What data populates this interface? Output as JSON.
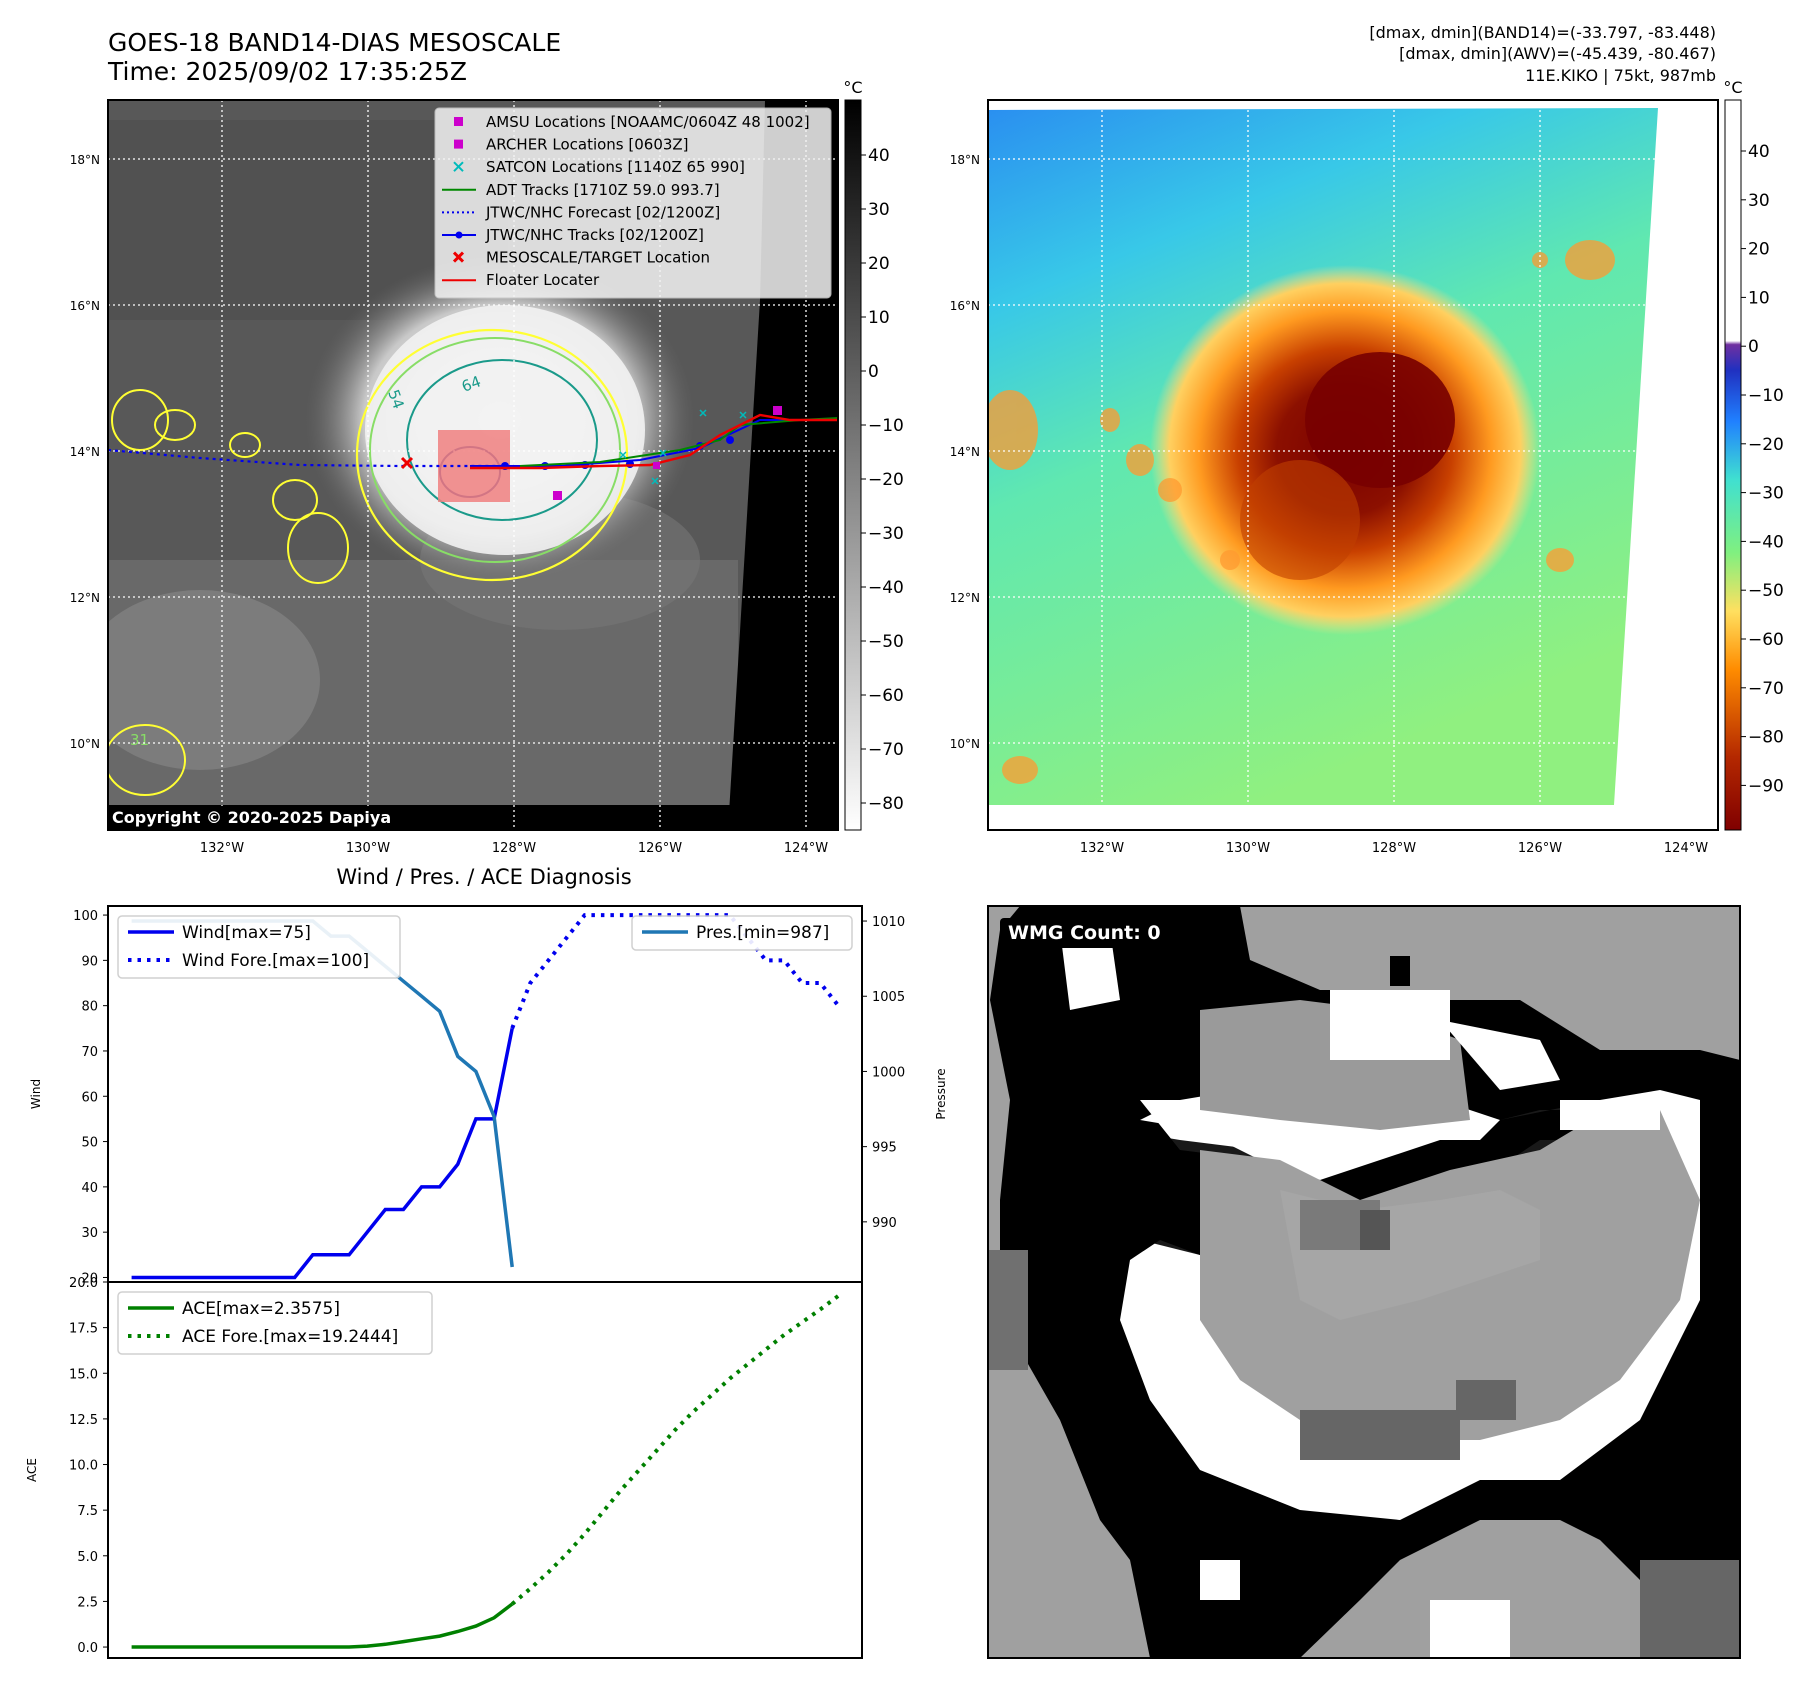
{
  "header": {
    "title_line1": "GOES-18 BAND14-DIAS MESOSCALE",
    "title_line2": "Time: 2025/09/02 17:35:25Z",
    "stats_line1": "[dmax, dmin](BAND14)=(-33.797, -83.448)",
    "stats_line2": "[dmax, dmin](AWV)=(-45.439, -80.467)",
    "stats_line3": "11E.KIKO | 75kt, 987mb"
  },
  "map_axes": {
    "lon_labels": [
      "132°W",
      "130°W",
      "128°W",
      "126°W",
      "124°W"
    ],
    "lat_labels": [
      "18°N",
      "16°N",
      "14°N",
      "12°N",
      "10°N"
    ]
  },
  "ir_panel": {
    "copyright": "Copyright © 2020-2025 Dapiya",
    "contour_labels": [
      "54",
      "64",
      "31"
    ],
    "legend": [
      {
        "label": "AMSU Locations [NOAAMC/0604Z 48 1002]",
        "color": "#cc00cc"
      },
      {
        "label": "ARCHER Locations [0603Z]",
        "color": "#cc00cc"
      },
      {
        "label": "SATCON Locations [1140Z 65 990]",
        "color": "#00bbbb"
      },
      {
        "label": "ADT Tracks [1710Z 59.0 993.7]",
        "color": "#008800"
      },
      {
        "label": "JTWC/NHC Forecast [02/1200Z]",
        "color": "#0000ee"
      },
      {
        "label": "JTWC/NHC Tracks [02/1200Z]",
        "color": "#0000ee"
      },
      {
        "label": "MESOSCALE/TARGET Location",
        "color": "#ee0000"
      },
      {
        "label": "Floater Locater",
        "color": "#ee0000"
      }
    ],
    "colorbar": {
      "unit": "°C",
      "ticks": [
        "40",
        "30",
        "20",
        "10",
        "0",
        "−10",
        "−20",
        "−30",
        "−40",
        "−50",
        "−60",
        "−70",
        "−80"
      ]
    }
  },
  "awv_panel": {
    "colorbar": {
      "unit": "°C",
      "ticks": [
        "40",
        "30",
        "20",
        "10",
        "0",
        "−10",
        "−20",
        "−30",
        "−40",
        "−50",
        "−60",
        "−70",
        "−80",
        "−90"
      ]
    }
  },
  "wmg_panel": {
    "badge": "WMG Count: 0"
  },
  "chart_data": [
    {
      "type": "line",
      "title": "Wind / Pres. / ACE Diagnosis",
      "ylabel": "Wind",
      "ylabel_right": "Pressure",
      "ylim": [
        19,
        102
      ],
      "ylim_right": [
        986,
        1011
      ],
      "y_ticks": [
        20,
        30,
        40,
        50,
        60,
        70,
        80,
        90,
        100
      ],
      "y_ticks_right": [
        990,
        995,
        1000,
        1005,
        1010
      ],
      "series": [
        {
          "name": "Wind[max=75]",
          "style": "solid",
          "color": "#0000ee",
          "x": [
            0,
            1,
            2,
            3,
            4,
            5,
            6,
            7,
            8,
            9,
            10,
            11,
            12,
            13,
            14,
            15,
            16,
            17,
            18,
            19,
            20,
            21
          ],
          "values": [
            20,
            20,
            20,
            20,
            20,
            20,
            20,
            20,
            20,
            20,
            25,
            25,
            25,
            30,
            35,
            35,
            40,
            40,
            45,
            55,
            55,
            75
          ]
        },
        {
          "name": "Wind Fore.[max=100]",
          "style": "dotted",
          "color": "#0000ee",
          "x": [
            21,
            22,
            23,
            24,
            25,
            26,
            27,
            28,
            29,
            30,
            31,
            32,
            33,
            34,
            35,
            36,
            37,
            38,
            39
          ],
          "values": [
            75,
            85,
            90,
            95,
            100,
            100,
            100,
            100,
            100,
            100,
            100,
            100,
            100,
            95,
            90,
            90,
            85,
            85,
            80
          ]
        },
        {
          "name": "Pres.[min=987]",
          "style": "solid",
          "color": "#1f77b4",
          "x": [
            0,
            1,
            2,
            3,
            4,
            5,
            6,
            7,
            8,
            9,
            10,
            11,
            12,
            13,
            14,
            15,
            16,
            17,
            18,
            19,
            20,
            21
          ],
          "values": [
            1010,
            1010,
            1010,
            1010,
            1010,
            1010,
            1010,
            1010,
            1010,
            1010,
            1010,
            1009,
            1009,
            1008,
            1007,
            1006,
            1005,
            1004,
            1001,
            1000,
            997,
            987
          ]
        }
      ]
    },
    {
      "type": "line",
      "ylabel": "ACE",
      "ylim": [
        -0.6,
        20
      ],
      "y_ticks": [
        0.0,
        2.5,
        5.0,
        7.5,
        10.0,
        12.5,
        15.0,
        17.5,
        20.0
      ],
      "series": [
        {
          "name": "ACE[max=2.3575]",
          "style": "solid",
          "color": "#008000",
          "x": [
            0,
            2,
            4,
            6,
            8,
            10,
            12,
            13,
            14,
            15,
            16,
            17,
            18,
            19,
            20,
            21
          ],
          "values": [
            0,
            0,
            0,
            0,
            0,
            0,
            0,
            0.05,
            0.15,
            0.3,
            0.45,
            0.6,
            0.85,
            1.15,
            1.6,
            2.3575
          ]
        },
        {
          "name": "ACE Fore.[max=19.2444]",
          "style": "dotted",
          "color": "#008000",
          "x": [
            21,
            22,
            23,
            24,
            25,
            26,
            27,
            28,
            29,
            30,
            31,
            32,
            33,
            34,
            35,
            36,
            37,
            38,
            39
          ],
          "values": [
            2.3575,
            3.2,
            4.1,
            5.1,
            6.2,
            7.4,
            8.6,
            9.7,
            10.8,
            11.9,
            12.9,
            13.8,
            14.7,
            15.5,
            16.3,
            17.1,
            17.8,
            18.5,
            19.2444
          ]
        }
      ]
    }
  ]
}
